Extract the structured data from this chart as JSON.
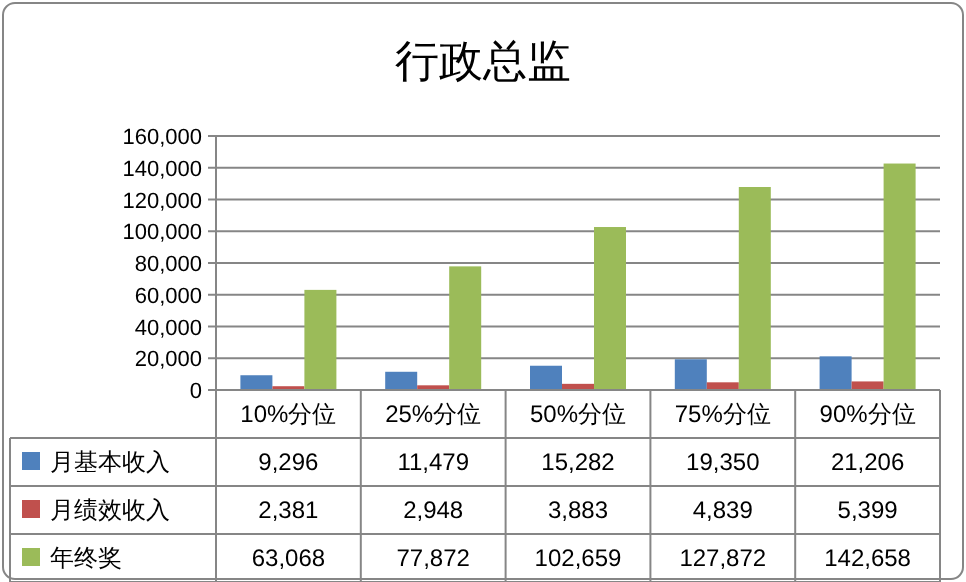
{
  "chart_data": {
    "type": "bar",
    "title": "行政总监",
    "categories": [
      "10%分位",
      "25%分位",
      "50%分位",
      "75%分位",
      "90%分位"
    ],
    "series": [
      {
        "name": "月基本收入",
        "color": "#4f81bd",
        "values": [
          9296,
          11479,
          15282,
          19350,
          21206
        ],
        "value_labels": [
          "9,296",
          "11,479",
          "15,282",
          "19,350",
          "21,206"
        ]
      },
      {
        "name": "月绩效收入",
        "color": "#c0504d",
        "values": [
          2381,
          2948,
          3883,
          4839,
          5399
        ],
        "value_labels": [
          "2,381",
          "2,948",
          "3,883",
          "4,839",
          "5,399"
        ]
      },
      {
        "name": "年终奖",
        "color": "#9bbb59",
        "values": [
          63068,
          77872,
          102659,
          127872,
          142658
        ],
        "value_labels": [
          "63,068",
          "77,872",
          "102,659",
          "127,872",
          "142,658"
        ]
      }
    ],
    "ylim": [
      0,
      160000
    ],
    "yticks": [
      0,
      {
        "value": 20000,
        "label": "20,000"
      },
      {
        "value": 40000,
        "label": "40,000"
      },
      {
        "value": 60000,
        "label": "60,000"
      },
      {
        "value": 80000,
        "label": "80,000"
      },
      {
        "value": 100000,
        "label": "100,000"
      },
      {
        "value": 120000,
        "label": "120,000"
      },
      {
        "value": 140000,
        "label": "140,000"
      },
      {
        "value": 160000,
        "label": "160,000"
      }
    ],
    "grid": "y",
    "legend": "bottom"
  }
}
